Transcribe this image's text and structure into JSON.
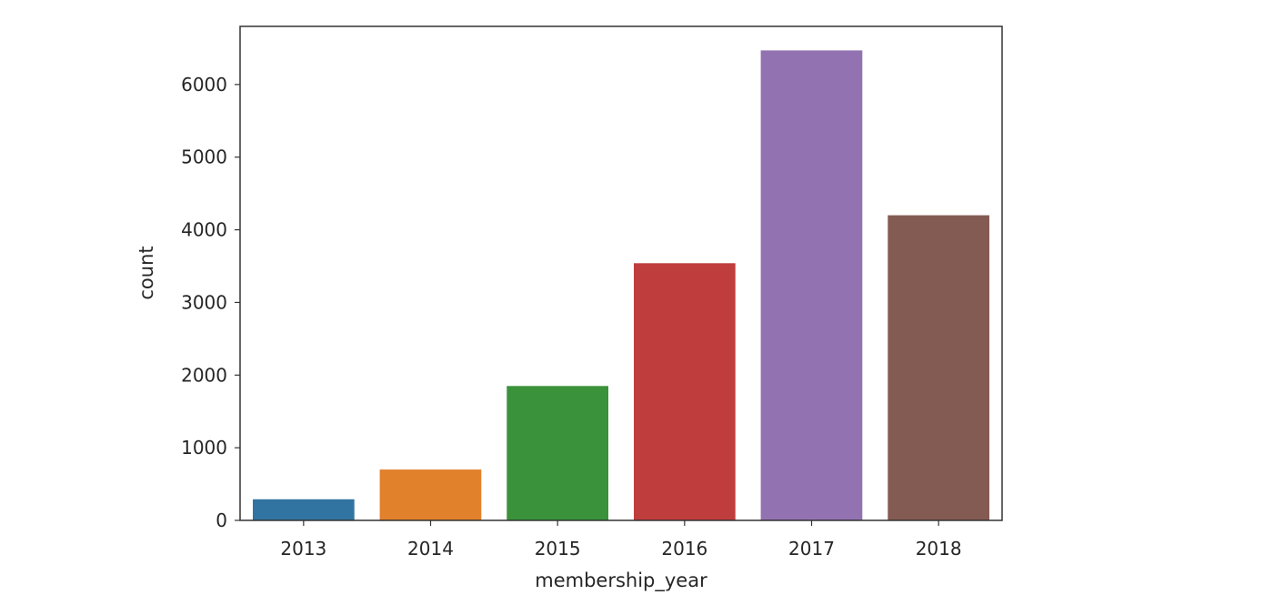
{
  "chart_data": {
    "type": "bar",
    "title": "",
    "xlabel": "membership_year",
    "ylabel": "count",
    "categories": [
      "2013",
      "2014",
      "2015",
      "2016",
      "2017",
      "2018"
    ],
    "values": [
      290,
      700,
      1850,
      3540,
      6470,
      4200
    ],
    "colors": [
      "#3274a1",
      "#e1812c",
      "#3a923a",
      "#c03d3e",
      "#9372b2",
      "#845b53"
    ],
    "ylim": [
      0,
      6800
    ],
    "yticks": [
      0,
      1000,
      2000,
      3000,
      4000,
      5000,
      6000
    ],
    "grid": false,
    "legend": "none"
  }
}
